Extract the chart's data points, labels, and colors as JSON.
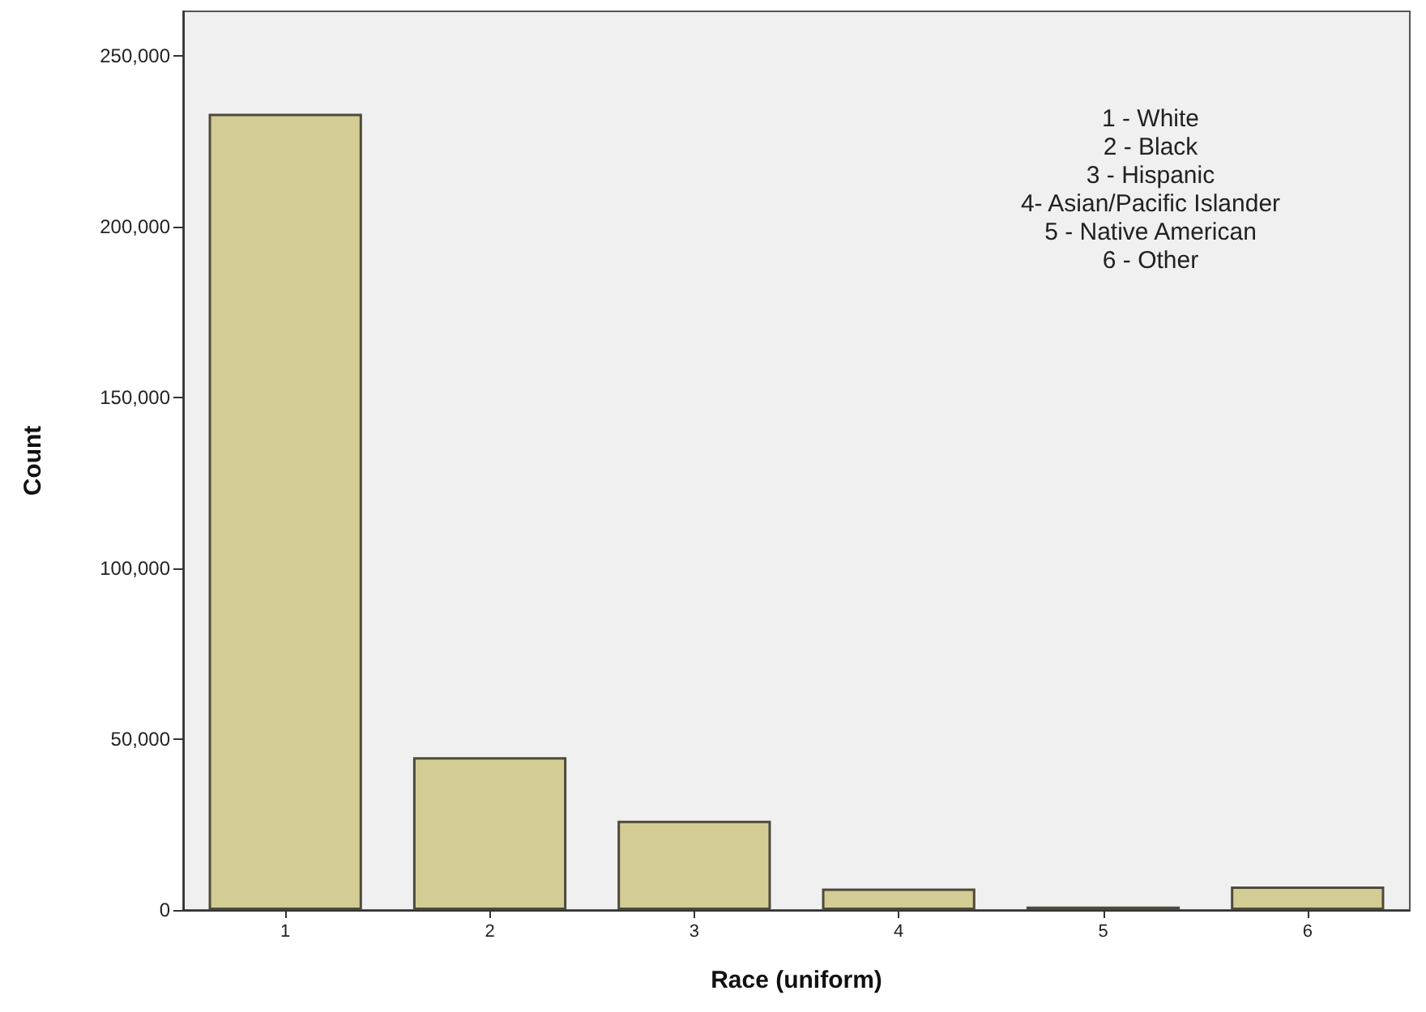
{
  "chart_data": {
    "type": "bar",
    "xlabel": "Race (uniform)",
    "ylabel": "Count",
    "categories": [
      "1",
      "2",
      "3",
      "4",
      "5",
      "6"
    ],
    "values": [
      233000,
      44700,
      26100,
      6300,
      1000,
      6900
    ],
    "color": "#d3cd95",
    "ylim": [
      0,
      263000
    ],
    "yticks": [
      0,
      {
        "value": 50000,
        "label": "50,000"
      },
      {
        "value": 100000,
        "label": "100,000"
      },
      {
        "value": 150000,
        "label": "150,000"
      },
      {
        "value": 200000,
        "label": "200,000"
      },
      {
        "value": 250000,
        "label": "250,000"
      }
    ],
    "grid": false,
    "annotations": [
      "1 - White",
      "2 - Black",
      "3 - Hispanic",
      "4- Asian/Pacific Islander",
      "5 - Native American",
      "6 - Other"
    ]
  }
}
